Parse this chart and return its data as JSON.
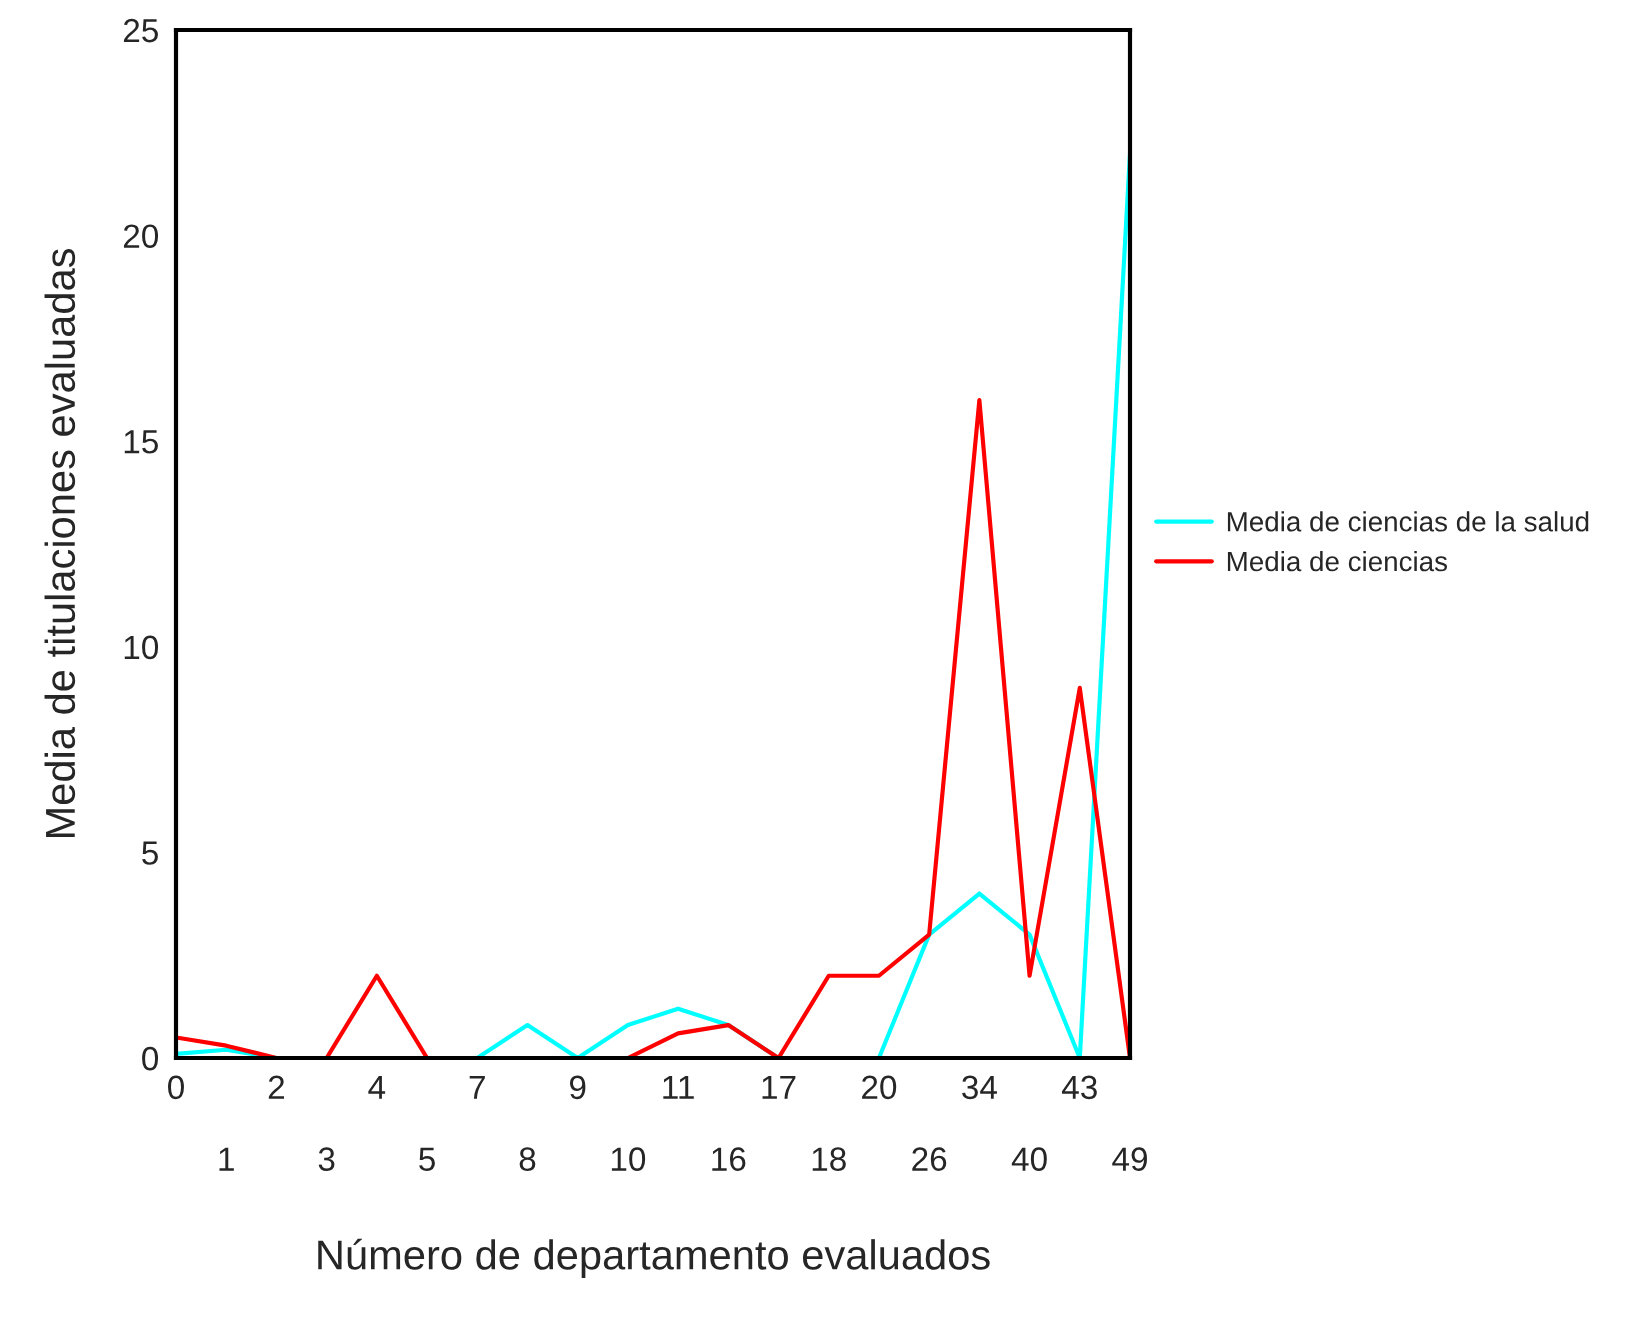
{
  "chart_data": {
    "type": "line",
    "xlabel": "Número de departamento evaluados",
    "ylabel": "Media de titulaciones evaluadas",
    "categories": [
      "0",
      "1",
      "2",
      "3",
      "4",
      "5",
      "7",
      "8",
      "9",
      "10",
      "11",
      "16",
      "17",
      "18",
      "20",
      "26",
      "34",
      "40",
      "43",
      "49"
    ],
    "series": [
      {
        "name": "Media de ciencias de la salud",
        "color": "#00ffff",
        "values": [
          0.1,
          0.2,
          0,
          0,
          0,
          0,
          0,
          0.8,
          0,
          0.8,
          1.2,
          0.8,
          0,
          0,
          0,
          3,
          4,
          3,
          0,
          22
        ]
      },
      {
        "name": "Media de ciencias",
        "color": "#ff0000",
        "values": [
          0.5,
          0.3,
          0,
          0,
          2,
          0,
          0,
          0,
          0,
          0,
          0.6,
          0.8,
          0,
          2,
          2,
          3,
          16,
          2,
          9,
          0
        ]
      }
    ],
    "ylim": [
      0,
      25
    ],
    "yticks": [
      0,
      5,
      10,
      15,
      20,
      25
    ],
    "grid": false,
    "legend": "right",
    "marker": "none",
    "line_style": "solid"
  }
}
